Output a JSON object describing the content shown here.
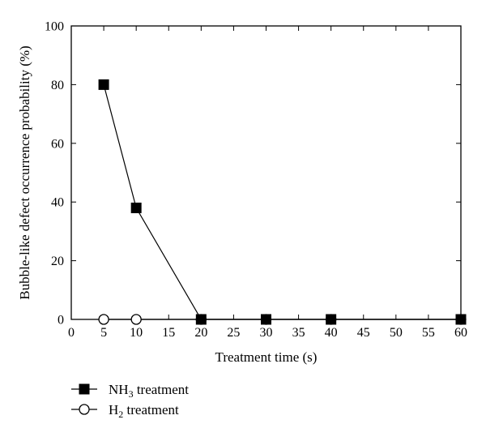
{
  "chart_data": {
    "type": "line",
    "title": "",
    "xlabel": "Treatment time (s)",
    "ylabel": "Bubble-like defect occurrence probability (%)",
    "xlim": [
      0,
      60
    ],
    "ylim": [
      0,
      100
    ],
    "xticks": [
      "0",
      "5",
      "10",
      "15",
      "20",
      "25",
      "30",
      "35",
      "40",
      "45",
      "50",
      "55",
      "60"
    ],
    "yticks": [
      "0",
      "20",
      "40",
      "60",
      "80",
      "100"
    ],
    "grid": false,
    "legend_position": "bottom-left, outside plot",
    "series": [
      {
        "name_main": "NH",
        "name_sub": "3",
        "name_rest": " treatment",
        "marker": "filled-square",
        "color": "#000000",
        "x": [
          5,
          10,
          20,
          30,
          40,
          60
        ],
        "y": [
          80,
          38,
          0,
          0,
          0,
          0
        ]
      },
      {
        "name_main": "H",
        "name_sub": "2",
        "name_rest": " treatment",
        "marker": "open-circle",
        "color": "#000000",
        "x": [
          5,
          10,
          20,
          30,
          40,
          60
        ],
        "y": [
          0,
          0,
          0,
          0,
          0,
          0
        ]
      }
    ]
  }
}
